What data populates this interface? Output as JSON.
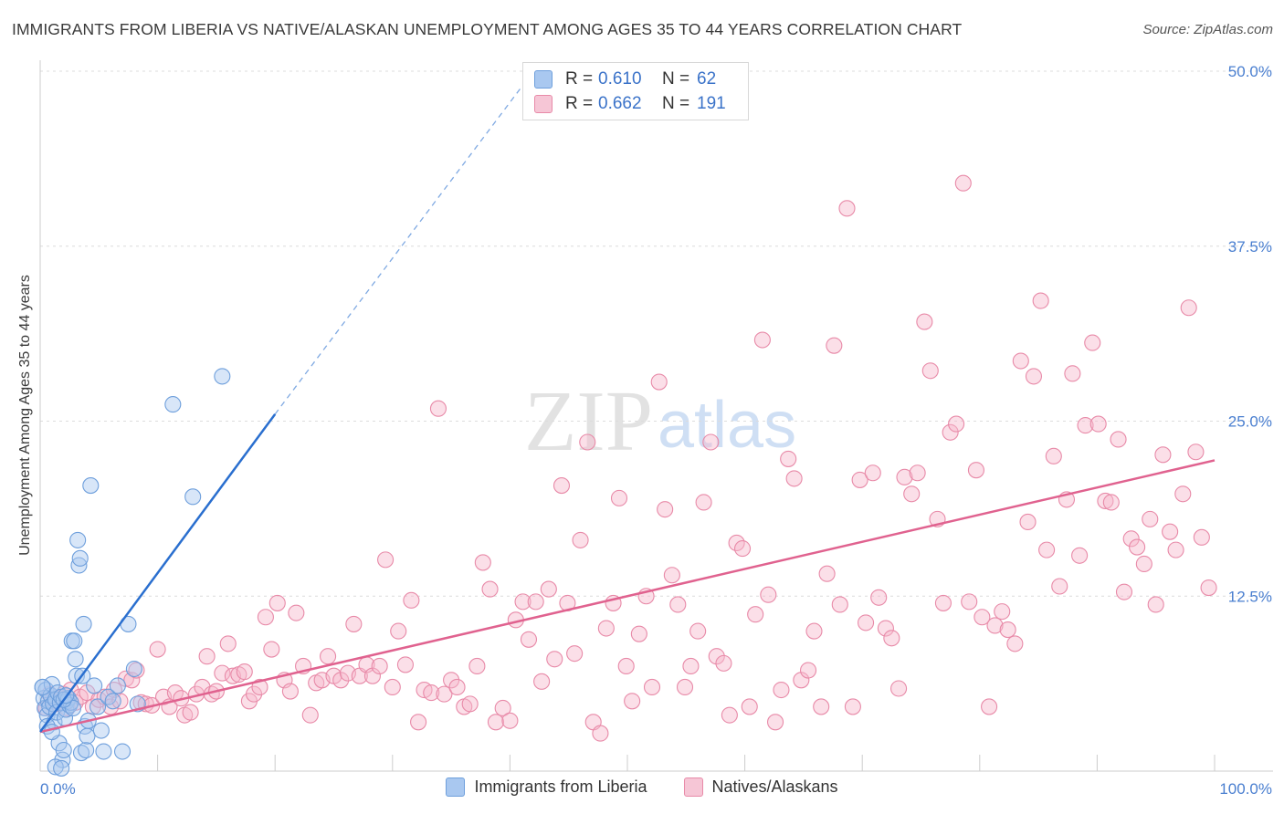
{
  "title": "IMMIGRANTS FROM LIBERIA VS NATIVE/ALASKAN UNEMPLOYMENT AMONG AGES 35 TO 44 YEARS CORRELATION CHART",
  "source": "Source: ZipAtlas.com",
  "watermark": {
    "zip": "ZIP",
    "atlas": "atlas"
  },
  "colors": {
    "blue_fill": "#a9c8f0",
    "blue_stroke": "#6e9fdc",
    "blue_line": "#2a6fcf",
    "pink_fill": "#f6b8cc",
    "pink_stroke": "#e88aa8",
    "pink_line": "#e0628f",
    "tick_text": "#4a7fd0",
    "grid": "#dcdcdc"
  },
  "legend": {
    "series": [
      {
        "r_label": "R =",
        "r_value": "0.610",
        "n_label": "N =",
        "n_value": "62"
      },
      {
        "r_label": "R =",
        "r_value": "0.662",
        "n_label": "N =",
        "n_value": "191"
      }
    ]
  },
  "chart_data": {
    "type": "scatter",
    "title": "IMMIGRANTS FROM LIBERIA VS NATIVE/ALASKAN UNEMPLOYMENT AMONG AGES 35 TO 44 YEARS CORRELATION CHART",
    "xlabel": "",
    "ylabel": "Unemployment Among Ages 35 to 44 years",
    "xlim": [
      0,
      100
    ],
    "ylim": [
      0,
      50
    ],
    "x_tick_labels": [
      "0.0%",
      "100.0%"
    ],
    "y_ticks": [
      12.5,
      25.0,
      37.5,
      50.0
    ],
    "y_tick_labels": [
      "12.5%",
      "25.0%",
      "37.5%",
      "50.0%"
    ],
    "grid": true,
    "legend_position": "bottom-center",
    "series": [
      {
        "name": "Immigrants from Liberia",
        "color": "blue",
        "r": 0.61,
        "n": 62,
        "trend": {
          "x0": 0,
          "y0": 2.8,
          "x1": 20,
          "y1": 25.5,
          "dashed_to_x": 42,
          "dashed_to_y": 50.0
        },
        "points": [
          [
            0.2,
            6.0
          ],
          [
            0.3,
            5.2
          ],
          [
            0.4,
            4.5
          ],
          [
            0.5,
            5.8
          ],
          [
            0.6,
            4.0
          ],
          [
            0.7,
            5.0
          ],
          [
            0.8,
            4.6
          ],
          [
            0.9,
            5.4
          ],
          [
            1.0,
            6.2
          ],
          [
            1.1,
            4.8
          ],
          [
            1.2,
            3.5
          ],
          [
            1.3,
            5.1
          ],
          [
            1.4,
            4.2
          ],
          [
            1.5,
            5.6
          ],
          [
            1.6,
            2.0
          ],
          [
            1.7,
            4.9
          ],
          [
            1.8,
            5.3
          ],
          [
            1.9,
            0.8
          ],
          [
            2.0,
            1.5
          ],
          [
            2.1,
            3.8
          ],
          [
            2.2,
            4.4
          ],
          [
            2.3,
            5.0
          ],
          [
            2.4,
            5.2
          ],
          [
            2.5,
            4.7
          ],
          [
            2.6,
            4.9
          ],
          [
            2.7,
            9.3
          ],
          [
            2.8,
            4.5
          ],
          [
            2.9,
            9.3
          ],
          [
            3.0,
            8.0
          ],
          [
            3.1,
            6.8
          ],
          [
            3.2,
            16.5
          ],
          [
            3.3,
            14.7
          ],
          [
            3.4,
            15.2
          ],
          [
            3.5,
            1.3
          ],
          [
            3.6,
            6.8
          ],
          [
            3.7,
            10.5
          ],
          [
            3.8,
            3.2
          ],
          [
            3.9,
            1.5
          ],
          [
            4.0,
            2.5
          ],
          [
            4.1,
            3.6
          ],
          [
            4.3,
            20.4
          ],
          [
            4.6,
            6.1
          ],
          [
            4.9,
            4.6
          ],
          [
            5.2,
            2.9
          ],
          [
            5.4,
            1.4
          ],
          [
            5.8,
            5.3
          ],
          [
            6.2,
            5.0
          ],
          [
            6.6,
            6.1
          ],
          [
            7.0,
            1.4
          ],
          [
            7.5,
            10.5
          ],
          [
            8.0,
            7.3
          ],
          [
            8.3,
            4.8
          ],
          [
            11.3,
            26.2
          ],
          [
            13.0,
            19.6
          ],
          [
            15.5,
            28.2
          ],
          [
            0.2,
            6.0
          ],
          [
            0.6,
            3.2
          ],
          [
            1.0,
            2.8
          ],
          [
            1.3,
            0.3
          ],
          [
            2.0,
            5.1
          ],
          [
            2.2,
            5.4
          ],
          [
            1.8,
            0.2
          ]
        ]
      },
      {
        "name": "Natives/Alaskans",
        "color": "pink",
        "r": 0.662,
        "n": 191,
        "trend": {
          "x0": 0,
          "y0": 2.8,
          "x1": 100,
          "y1": 22.2
        },
        "points": [
          [
            0.5,
            4.5
          ],
          [
            0.8,
            5.5
          ],
          [
            1.0,
            5.0
          ],
          [
            1.3,
            4.8
          ],
          [
            1.6,
            5.2
          ],
          [
            2.0,
            5.5
          ],
          [
            2.3,
            4.5
          ],
          [
            2.6,
            5.8
          ],
          [
            3.0,
            4.9
          ],
          [
            3.4,
            5.3
          ],
          [
            4.0,
            5.6
          ],
          [
            4.5,
            4.6
          ],
          [
            5.0,
            5.1
          ],
          [
            5.5,
            5.3
          ],
          [
            6.0,
            4.6
          ],
          [
            6.3,
            5.8
          ],
          [
            6.8,
            5.0
          ],
          [
            7.3,
            6.6
          ],
          [
            7.8,
            6.5
          ],
          [
            8.2,
            7.2
          ],
          [
            8.6,
            4.9
          ],
          [
            9.0,
            4.8
          ],
          [
            9.5,
            4.7
          ],
          [
            10.0,
            8.7
          ],
          [
            10.5,
            5.3
          ],
          [
            11.0,
            4.6
          ],
          [
            11.5,
            5.6
          ],
          [
            12.0,
            5.2
          ],
          [
            12.3,
            4.0
          ],
          [
            12.8,
            4.2
          ],
          [
            13.3,
            5.5
          ],
          [
            13.8,
            6.0
          ],
          [
            14.2,
            8.2
          ],
          [
            14.6,
            5.5
          ],
          [
            15.0,
            5.7
          ],
          [
            15.5,
            7.0
          ],
          [
            16.0,
            9.1
          ],
          [
            16.4,
            6.8
          ],
          [
            16.9,
            6.9
          ],
          [
            17.4,
            7.1
          ],
          [
            17.8,
            5.0
          ],
          [
            18.2,
            5.5
          ],
          [
            18.7,
            6.0
          ],
          [
            19.2,
            11.0
          ],
          [
            19.7,
            8.7
          ],
          [
            20.2,
            12.0
          ],
          [
            20.8,
            6.5
          ],
          [
            21.3,
            5.7
          ],
          [
            21.8,
            11.3
          ],
          [
            22.4,
            7.5
          ],
          [
            23.0,
            4.0
          ],
          [
            23.5,
            6.3
          ],
          [
            24.0,
            6.5
          ],
          [
            24.5,
            8.2
          ],
          [
            25.0,
            6.8
          ],
          [
            25.6,
            6.5
          ],
          [
            26.2,
            7.0
          ],
          [
            26.7,
            10.5
          ],
          [
            27.2,
            6.8
          ],
          [
            27.8,
            7.6
          ],
          [
            28.3,
            6.8
          ],
          [
            28.9,
            7.5
          ],
          [
            29.4,
            15.1
          ],
          [
            30.0,
            6.0
          ],
          [
            30.5,
            10.0
          ],
          [
            31.1,
            7.6
          ],
          [
            31.6,
            12.2
          ],
          [
            32.2,
            3.5
          ],
          [
            32.7,
            5.8
          ],
          [
            33.3,
            5.6
          ],
          [
            33.9,
            25.9
          ],
          [
            34.4,
            5.5
          ],
          [
            35.0,
            6.5
          ],
          [
            35.5,
            6.0
          ],
          [
            36.1,
            4.6
          ],
          [
            36.6,
            4.8
          ],
          [
            37.2,
            7.5
          ],
          [
            37.7,
            14.9
          ],
          [
            38.3,
            13.0
          ],
          [
            38.8,
            3.5
          ],
          [
            39.4,
            4.5
          ],
          [
            40.0,
            3.6
          ],
          [
            40.5,
            10.8
          ],
          [
            41.1,
            12.1
          ],
          [
            41.6,
            9.4
          ],
          [
            42.2,
            12.1
          ],
          [
            42.7,
            6.4
          ],
          [
            43.3,
            13.0
          ],
          [
            43.8,
            8.0
          ],
          [
            44.4,
            20.4
          ],
          [
            44.9,
            12.0
          ],
          [
            45.5,
            8.4
          ],
          [
            46.0,
            16.5
          ],
          [
            46.6,
            23.5
          ],
          [
            47.1,
            3.5
          ],
          [
            47.7,
            2.7
          ],
          [
            48.2,
            10.2
          ],
          [
            48.8,
            12.0
          ],
          [
            49.3,
            19.5
          ],
          [
            49.9,
            7.5
          ],
          [
            50.4,
            5.0
          ],
          [
            51.0,
            9.8
          ],
          [
            51.6,
            12.5
          ],
          [
            52.1,
            6.0
          ],
          [
            52.7,
            27.8
          ],
          [
            53.2,
            18.7
          ],
          [
            53.8,
            14.0
          ],
          [
            54.3,
            11.9
          ],
          [
            54.9,
            6.0
          ],
          [
            55.4,
            7.5
          ],
          [
            56.0,
            10.0
          ],
          [
            56.5,
            19.2
          ],
          [
            57.1,
            23.5
          ],
          [
            57.6,
            8.2
          ],
          [
            58.2,
            7.7
          ],
          [
            58.7,
            4.0
          ],
          [
            59.3,
            16.3
          ],
          [
            59.8,
            15.9
          ],
          [
            60.4,
            4.6
          ],
          [
            60.9,
            11.2
          ],
          [
            61.5,
            30.8
          ],
          [
            62.0,
            12.6
          ],
          [
            62.6,
            3.5
          ],
          [
            63.1,
            5.8
          ],
          [
            63.7,
            22.3
          ],
          [
            64.2,
            20.9
          ],
          [
            64.8,
            6.5
          ],
          [
            65.4,
            7.2
          ],
          [
            65.9,
            10.0
          ],
          [
            66.5,
            4.6
          ],
          [
            67.0,
            14.1
          ],
          [
            67.6,
            30.4
          ],
          [
            68.1,
            11.9
          ],
          [
            68.7,
            40.2
          ],
          [
            69.2,
            4.6
          ],
          [
            69.8,
            20.8
          ],
          [
            70.3,
            10.6
          ],
          [
            70.9,
            21.3
          ],
          [
            71.4,
            12.4
          ],
          [
            72.0,
            10.2
          ],
          [
            72.5,
            9.5
          ],
          [
            73.1,
            5.9
          ],
          [
            73.6,
            21.0
          ],
          [
            74.2,
            19.8
          ],
          [
            74.7,
            21.3
          ],
          [
            75.3,
            32.1
          ],
          [
            75.8,
            28.6
          ],
          [
            76.4,
            18.0
          ],
          [
            76.9,
            12.0
          ],
          [
            77.5,
            24.2
          ],
          [
            78.0,
            24.8
          ],
          [
            78.6,
            42.0
          ],
          [
            79.1,
            12.1
          ],
          [
            79.7,
            21.5
          ],
          [
            80.2,
            11.0
          ],
          [
            80.8,
            4.6
          ],
          [
            81.3,
            10.4
          ],
          [
            81.9,
            11.4
          ],
          [
            82.4,
            10.1
          ],
          [
            83.0,
            9.1
          ],
          [
            83.5,
            29.3
          ],
          [
            84.1,
            17.8
          ],
          [
            84.6,
            28.2
          ],
          [
            85.2,
            33.6
          ],
          [
            85.7,
            15.8
          ],
          [
            86.3,
            22.5
          ],
          [
            86.8,
            13.2
          ],
          [
            87.4,
            19.4
          ],
          [
            87.9,
            28.4
          ],
          [
            88.5,
            15.4
          ],
          [
            89.0,
            24.7
          ],
          [
            89.6,
            30.6
          ],
          [
            90.1,
            24.8
          ],
          [
            90.7,
            19.3
          ],
          [
            91.2,
            19.2
          ],
          [
            91.8,
            23.7
          ],
          [
            92.3,
            12.8
          ],
          [
            92.9,
            16.6
          ],
          [
            93.4,
            16.0
          ],
          [
            94.0,
            14.8
          ],
          [
            94.5,
            18.0
          ],
          [
            95.0,
            11.9
          ],
          [
            95.6,
            22.6
          ],
          [
            96.2,
            17.1
          ],
          [
            96.7,
            15.8
          ],
          [
            97.3,
            19.8
          ],
          [
            97.8,
            33.1
          ],
          [
            98.4,
            22.8
          ],
          [
            98.9,
            16.7
          ],
          [
            99.5,
            13.1
          ]
        ]
      }
    ]
  },
  "x_axis": {
    "left_label": "0.0%",
    "right_label": "100.0%"
  },
  "bottom_legend": [
    {
      "label": "Immigrants from Liberia"
    },
    {
      "label": "Natives/Alaskans"
    }
  ]
}
